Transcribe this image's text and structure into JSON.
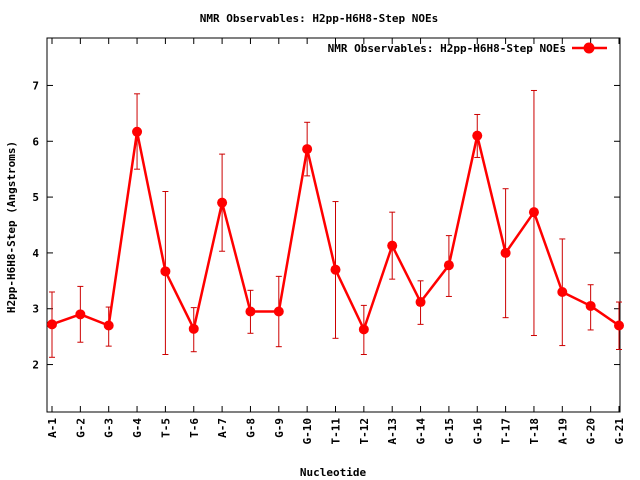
{
  "chart_data": {
    "type": "line",
    "title": "NMR Observables: H2pp-H6H8-Step NOEs",
    "xlabel": "Nucleotide",
    "ylabel": "H2pp-H6H8-Step (Angstroms)",
    "ylim": [
      1.15,
      7.85
    ],
    "yticks": [
      2,
      3,
      4,
      5,
      6,
      7
    ],
    "grid": false,
    "legend_position": "top-right",
    "colors": {
      "series": "#ff0000",
      "errorbar": "#cc0000",
      "axis": "#000000"
    },
    "categories": [
      "A-1",
      "G-2",
      "G-3",
      "G-4",
      "T-5",
      "T-6",
      "A-7",
      "G-8",
      "G-9",
      "G-10",
      "T-11",
      "T-12",
      "A-13",
      "G-14",
      "G-15",
      "G-16",
      "T-17",
      "T-18",
      "A-19",
      "G-20",
      "G-21"
    ],
    "series": [
      {
        "name": "NMR Observables: H2pp-H6H8-Step NOEs",
        "values": [
          2.72,
          2.9,
          2.7,
          6.17,
          3.67,
          2.64,
          4.9,
          2.95,
          2.95,
          5.86,
          3.7,
          2.63,
          4.13,
          3.12,
          3.78,
          6.1,
          4.0,
          4.73,
          3.3,
          3.05,
          2.7
        ],
        "err_low": [
          2.13,
          2.4,
          2.33,
          5.5,
          2.18,
          2.23,
          4.03,
          2.56,
          2.32,
          5.38,
          2.47,
          2.18,
          3.53,
          2.72,
          3.22,
          5.71,
          2.84,
          2.52,
          2.34,
          2.62,
          2.27
        ],
        "err_high": [
          3.3,
          3.4,
          3.03,
          6.85,
          5.1,
          3.02,
          5.77,
          3.33,
          3.58,
          6.34,
          4.92,
          3.06,
          4.73,
          3.5,
          4.31,
          6.48,
          5.15,
          6.91,
          4.25,
          3.43,
          3.12
        ]
      }
    ]
  }
}
